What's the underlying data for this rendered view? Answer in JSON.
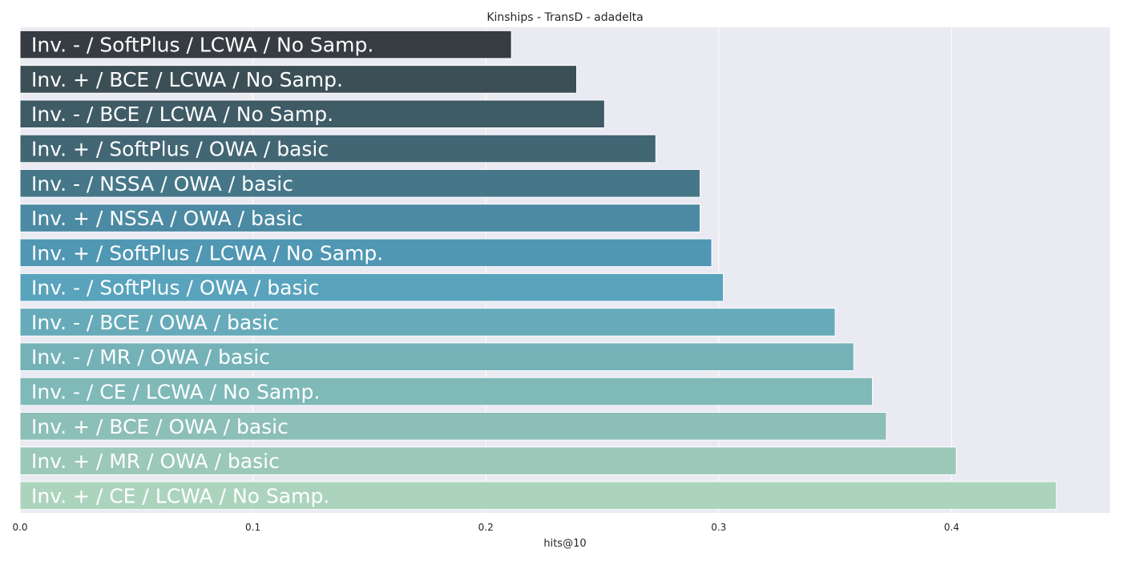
{
  "chart_data": {
    "type": "bar",
    "orientation": "horizontal",
    "title": "Kinships - TransD - adadelta",
    "xlabel": "hits@10",
    "ylabel": "",
    "xlim": [
      0,
      0.468
    ],
    "xticks": [
      0.0,
      0.1,
      0.2,
      0.3,
      0.4
    ],
    "xtick_labels": [
      "0.0",
      "0.1",
      "0.2",
      "0.3",
      "0.4"
    ],
    "grid": true,
    "categories": [
      "Inv. - / SoftPlus / LCWA / No Samp.",
      "Inv. + / BCE / LCWA / No Samp.",
      "Inv. - / BCE / LCWA / No Samp.",
      "Inv. + / SoftPlus / OWA / basic",
      "Inv. - / NSSA / OWA / basic",
      "Inv. + / NSSA / OWA / basic",
      "Inv. + / SoftPlus / LCWA / No Samp.",
      "Inv. - / SoftPlus / OWA / basic",
      "Inv. - / BCE / OWA / basic",
      "Inv. - / MR / OWA / basic",
      "Inv. - / CE / LCWA / No Samp.",
      "Inv. + / BCE / OWA / basic",
      "Inv. + / MR / OWA / basic",
      "Inv. + / CE / LCWA / No Samp."
    ],
    "values": [
      0.211,
      0.239,
      0.251,
      0.273,
      0.292,
      0.292,
      0.297,
      0.302,
      0.35,
      0.358,
      0.366,
      0.372,
      0.402,
      0.445
    ],
    "colors": [
      "#363c41",
      "#3c4f57",
      "#3f5b66",
      "#426674",
      "#467788",
      "#4b8aa2",
      "#5097b3",
      "#59a3bd",
      "#67abba",
      "#74b2b8",
      "#7fb9b8",
      "#8cbfb7",
      "#9bc8b9",
      "#acd4bd"
    ]
  }
}
